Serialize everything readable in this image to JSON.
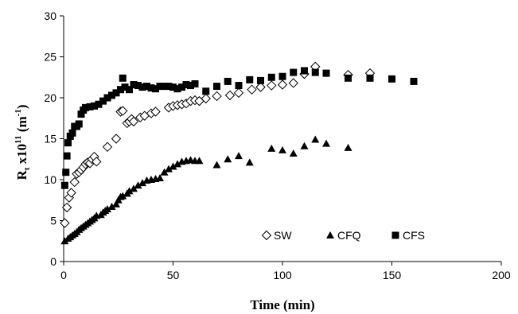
{
  "chart_data": {
    "type": "scatter",
    "xlabel": "Time (min)",
    "ylabel": {
      "main": "R",
      "sub": "t",
      "mid": " x10",
      "sup": "11",
      "unit": " (m",
      "unit_sup": "-1",
      "unit_end": ")"
    },
    "xlim": [
      0,
      200
    ],
    "ylim": [
      0,
      30
    ],
    "xticks": [
      0,
      50,
      100,
      150,
      200
    ],
    "yticks": [
      0,
      5,
      10,
      15,
      20,
      25,
      30
    ],
    "grid": false,
    "legend_position": "bottom-right",
    "series": [
      {
        "name": "SW",
        "marker": "diamond-open",
        "color": "#000000",
        "points": [
          [
            0.5,
            4.7
          ],
          [
            1.5,
            6.6
          ],
          [
            2.5,
            7.8
          ],
          [
            3.5,
            8.4
          ],
          [
            5,
            9.7
          ],
          [
            6,
            10.7
          ],
          [
            7,
            10.9
          ],
          [
            8,
            11.2
          ],
          [
            9,
            11.5
          ],
          [
            10,
            11.9
          ],
          [
            11,
            12.1
          ],
          [
            12,
            12.0
          ],
          [
            13,
            12.5
          ],
          [
            14,
            12.8
          ],
          [
            15,
            12.2
          ],
          [
            20,
            14.0
          ],
          [
            24,
            15.0
          ],
          [
            26,
            18.3
          ],
          [
            27,
            18.4
          ],
          [
            29,
            16.9
          ],
          [
            30,
            17.1
          ],
          [
            31,
            17.4
          ],
          [
            32,
            17.1
          ],
          [
            35,
            17.6
          ],
          [
            37,
            17.8
          ],
          [
            40,
            18.1
          ],
          [
            42,
            18.3
          ],
          [
            48,
            18.8
          ],
          [
            50,
            19.0
          ],
          [
            52,
            19.1
          ],
          [
            54,
            19.2
          ],
          [
            56,
            19.3
          ],
          [
            58,
            19.6
          ],
          [
            60,
            19.7
          ],
          [
            62,
            19.6
          ],
          [
            65,
            19.9
          ],
          [
            70,
            20.2
          ],
          [
            76,
            20.3
          ],
          [
            80,
            20.6
          ],
          [
            86,
            21.0
          ],
          [
            90,
            21.3
          ],
          [
            95,
            21.5
          ],
          [
            100,
            21.6
          ],
          [
            105,
            21.8
          ],
          [
            110,
            22.9
          ],
          [
            115,
            23.8
          ],
          [
            130,
            22.8
          ],
          [
            140,
            23.0
          ]
        ]
      },
      {
        "name": "CFQ",
        "marker": "triangle-filled",
        "color": "#000000",
        "points": [
          [
            0.5,
            2.5
          ],
          [
            2,
            2.8
          ],
          [
            3,
            3.0
          ],
          [
            4,
            3.2
          ],
          [
            5,
            3.4
          ],
          [
            6,
            3.6
          ],
          [
            7,
            3.9
          ],
          [
            8,
            4.1
          ],
          [
            9,
            4.3
          ],
          [
            10,
            4.5
          ],
          [
            11,
            4.7
          ],
          [
            12,
            4.9
          ],
          [
            13,
            5.1
          ],
          [
            14,
            5.3
          ],
          [
            15,
            5.6
          ],
          [
            17,
            5.7
          ],
          [
            18,
            6.0
          ],
          [
            19,
            6.2
          ],
          [
            20,
            6.4
          ],
          [
            22,
            6.7
          ],
          [
            24,
            7.0
          ],
          [
            25,
            7.5
          ],
          [
            26,
            7.9
          ],
          [
            27,
            8.0
          ],
          [
            29,
            8.3
          ],
          [
            30,
            8.6
          ],
          [
            32,
            8.9
          ],
          [
            34,
            9.3
          ],
          [
            36,
            9.6
          ],
          [
            38,
            9.9
          ],
          [
            40,
            10.0
          ],
          [
            42,
            10.1
          ],
          [
            44,
            10.2
          ],
          [
            46,
            10.9
          ],
          [
            48,
            11.3
          ],
          [
            50,
            11.6
          ],
          [
            52,
            11.9
          ],
          [
            54,
            12.2
          ],
          [
            56,
            12.3
          ],
          [
            58,
            12.4
          ],
          [
            60,
            12.3
          ],
          [
            62,
            12.3
          ],
          [
            70,
            11.8
          ],
          [
            75,
            12.5
          ],
          [
            80,
            12.9
          ],
          [
            85,
            12.1
          ],
          [
            95,
            13.8
          ],
          [
            100,
            13.6
          ],
          [
            105,
            13.2
          ],
          [
            110,
            14.1
          ],
          [
            115,
            14.9
          ],
          [
            120,
            14.4
          ],
          [
            130,
            13.9
          ]
        ]
      },
      {
        "name": "CFS",
        "marker": "square-filled",
        "color": "#000000",
        "points": [
          [
            0.5,
            9.3
          ],
          [
            1,
            10.9
          ],
          [
            1.5,
            12.9
          ],
          [
            2,
            14.5
          ],
          [
            3,
            15.3
          ],
          [
            4,
            15.7
          ],
          [
            5,
            16.5
          ],
          [
            6,
            16.5
          ],
          [
            7,
            16.8
          ],
          [
            8,
            18.0
          ],
          [
            9,
            18.5
          ],
          [
            10,
            18.8
          ],
          [
            12,
            18.9
          ],
          [
            14,
            19.0
          ],
          [
            16,
            19.2
          ],
          [
            18,
            19.6
          ],
          [
            20,
            20.0
          ],
          [
            22,
            20.3
          ],
          [
            24,
            20.6
          ],
          [
            26,
            21.0
          ],
          [
            27,
            22.4
          ],
          [
            28,
            21.3
          ],
          [
            30,
            21.0
          ],
          [
            32,
            21.6
          ],
          [
            34,
            21.5
          ],
          [
            36,
            21.3
          ],
          [
            38,
            21.4
          ],
          [
            40,
            21.2
          ],
          [
            42,
            21.1
          ],
          [
            44,
            21.4
          ],
          [
            46,
            21.4
          ],
          [
            48,
            21.4
          ],
          [
            50,
            21.3
          ],
          [
            52,
            21.1
          ],
          [
            54,
            21.3
          ],
          [
            56,
            21.6
          ],
          [
            58,
            21.5
          ],
          [
            60,
            21.7
          ],
          [
            65,
            20.8
          ],
          [
            70,
            21.4
          ],
          [
            75,
            22.0
          ],
          [
            80,
            21.5
          ],
          [
            85,
            22.2
          ],
          [
            90,
            22.1
          ],
          [
            95,
            22.5
          ],
          [
            100,
            22.6
          ],
          [
            105,
            23.1
          ],
          [
            110,
            23.3
          ],
          [
            115,
            23.1
          ],
          [
            120,
            23.0
          ],
          [
            130,
            22.4
          ],
          [
            140,
            22.4
          ],
          [
            150,
            22.3
          ],
          [
            160,
            22.0
          ]
        ]
      }
    ]
  }
}
